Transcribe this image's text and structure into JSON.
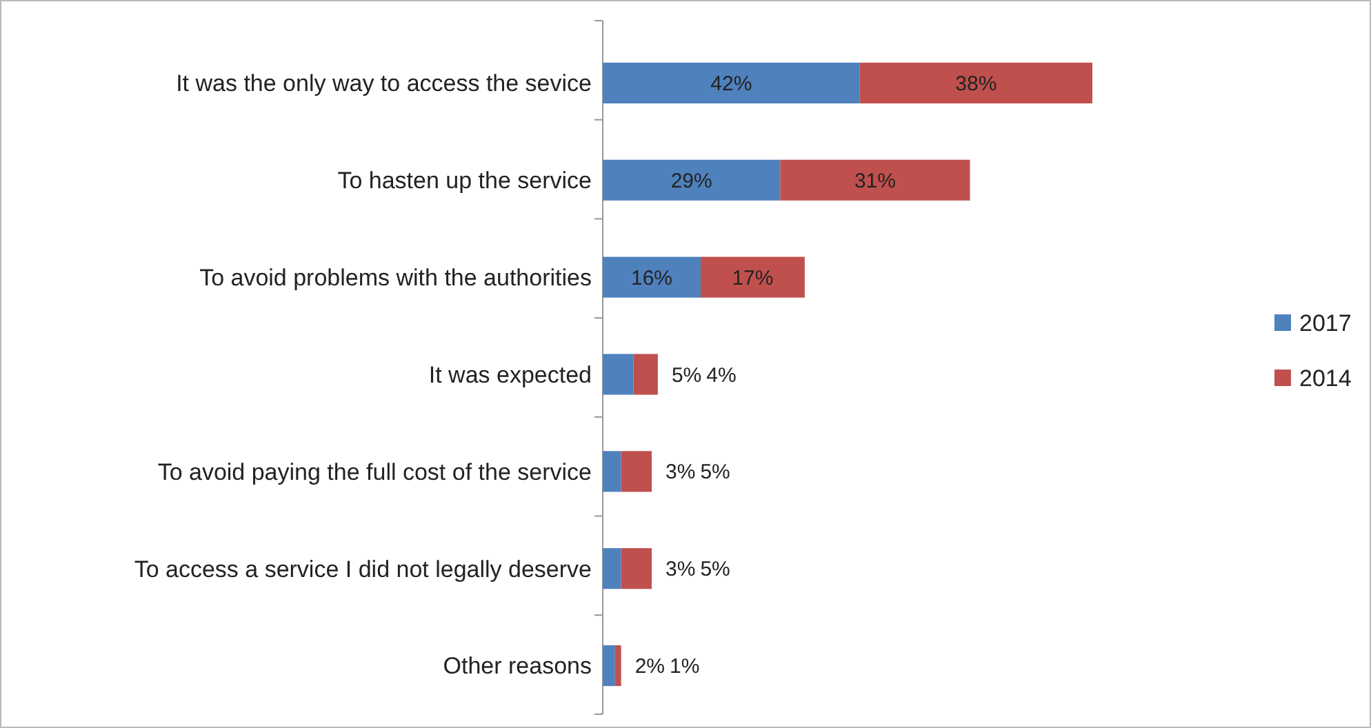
{
  "chart_data": {
    "type": "bar",
    "orientation": "horizontal",
    "stacked": true,
    "legend": "right",
    "categories": [
      "It was the only way to access the sevice",
      "To hasten up the service",
      "To avoid problems with the authorities",
      "It was expected",
      "To avoid paying the full cost of the service",
      "To access a service I did not legally deserve",
      "Other reasons"
    ],
    "series": [
      {
        "name": "2017",
        "color": "#4f81bd",
        "values": [
          42,
          29,
          16,
          5,
          3,
          3,
          2
        ],
        "value_labels": [
          "42%",
          "29%",
          "16%",
          "5%",
          "3%",
          "3%",
          "2%"
        ]
      },
      {
        "name": "2014",
        "color": "#c0504d",
        "values": [
          38,
          31,
          17,
          4,
          5,
          5,
          1
        ],
        "value_labels": [
          "38%",
          "31%",
          "17%",
          "4%",
          "5%",
          "5%",
          "1%"
        ]
      }
    ]
  }
}
